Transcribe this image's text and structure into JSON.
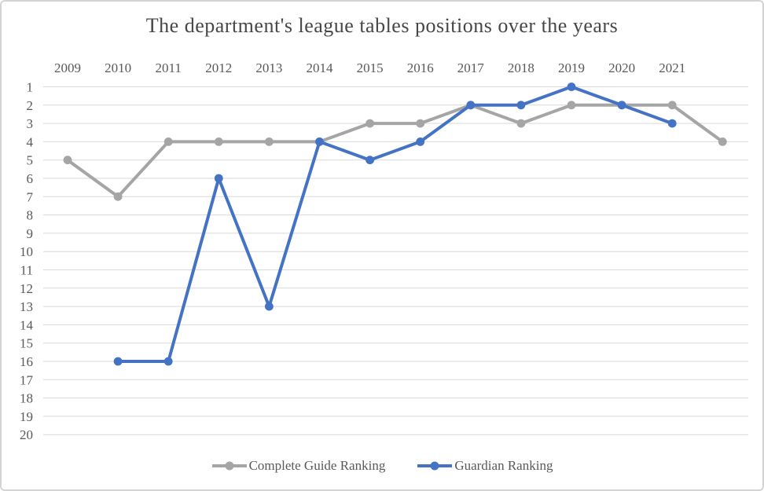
{
  "chart_data": {
    "type": "line",
    "title": "The department's league tables positions over the years",
    "x_labels": [
      "2009",
      "2010",
      "2011",
      "2012",
      "2013",
      "2014",
      "2015",
      "2016",
      "2017",
      "2018",
      "2019",
      "2020",
      "2021",
      ""
    ],
    "x_axis_position": "top",
    "y_axis": {
      "min": 1,
      "max": 20,
      "tick_step": 1,
      "inverted": true,
      "tick_labels": [
        "1",
        "2",
        "3",
        "4",
        "5",
        "6",
        "7",
        "8",
        "9",
        "10",
        "11",
        "12",
        "13",
        "14",
        "15",
        "16",
        "17",
        "18",
        "19",
        "20"
      ]
    },
    "grid": true,
    "legend_position": "bottom",
    "series": [
      {
        "name": "Complete Guide Ranking",
        "color": "#a5a5a5",
        "marker": "circle",
        "values": [
          5,
          7,
          4,
          4,
          4,
          4,
          3,
          3,
          2,
          3,
          2,
          2,
          2,
          4
        ]
      },
      {
        "name": "Guardian Ranking",
        "color": "#4472c4",
        "marker": "circle",
        "values": [
          null,
          16,
          16,
          6,
          13,
          4,
          5,
          4,
          2,
          2,
          1,
          2,
          3,
          null
        ]
      }
    ],
    "colors": {
      "gridline": "#d9d9d9",
      "axis_text": "#595959",
      "title_text": "#474747",
      "frame_border": "#d4d4d4",
      "background": "#ffffff"
    }
  }
}
